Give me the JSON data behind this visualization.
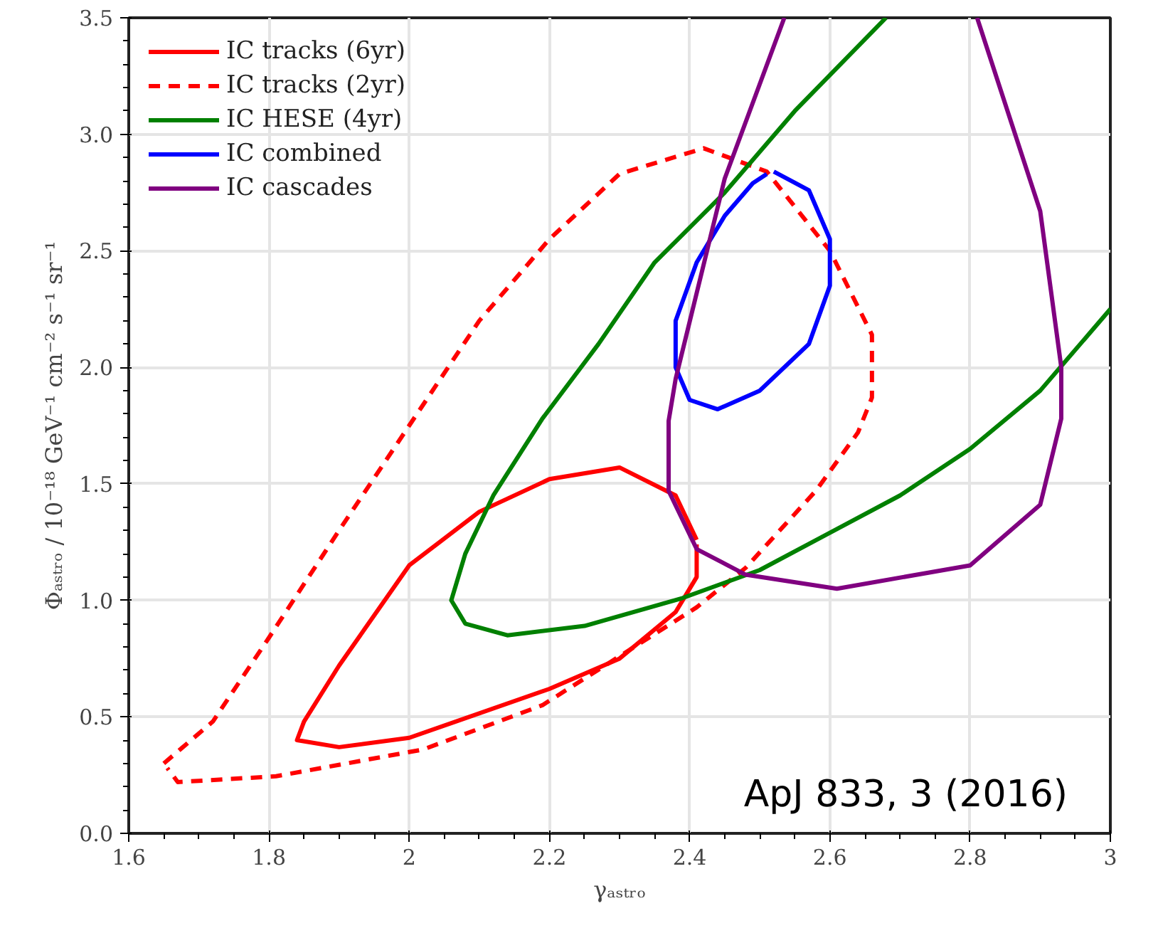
{
  "chart_data": {
    "type": "line",
    "xlabel": "γₐₛₜᵣₒ",
    "ylabel": "Φₐₛₜᵣₒ / 10⁻¹⁸ GeV⁻¹ cm⁻² s⁻¹ sr⁻¹",
    "xlim": [
      1.6,
      3.0
    ],
    "ylim": [
      0,
      3.5
    ],
    "xticks": [
      1.6,
      1.8,
      2.0,
      2.2,
      2.4,
      2.6,
      2.8,
      3.0
    ],
    "yticks": [
      {
        "value": 0,
        "label": "0.0"
      },
      0.5,
      {
        "value": 1,
        "label": "1.0"
      },
      1.5,
      {
        "value": 2,
        "label": "2.0"
      },
      2.5,
      {
        "value": 3,
        "label": "3.0"
      },
      3.5
    ],
    "grid": true,
    "legend": "top left",
    "annotations": [
      {
        "text": "ApJ 833, 3 (2016)"
      }
    ],
    "series": [
      {
        "name": "IC tracks (6yr)",
        "color": "#ff0000",
        "line_style": "solid",
        "x": [
          2.41,
          2.38,
          2.3,
          2.2,
          2.1,
          2.0,
          1.9,
          1.85,
          1.84,
          1.9,
          2.0,
          2.2,
          2.3,
          2.38,
          2.41,
          2.41
        ],
        "values": [
          1.26,
          1.45,
          1.57,
          1.52,
          1.38,
          1.15,
          0.72,
          0.48,
          0.4,
          0.37,
          0.41,
          0.62,
          0.75,
          0.95,
          1.1,
          1.24
        ]
      },
      {
        "name": "IC tracks (2yr)",
        "color": "#ff0000",
        "line_style": "dashed",
        "x": [
          1.65,
          1.72,
          1.8,
          1.9,
          2.0,
          2.1,
          2.2,
          2.3,
          2.42,
          2.51,
          2.6,
          2.66,
          2.66,
          2.64,
          2.58,
          2.48,
          2.41,
          2.19,
          2.02,
          1.81,
          1.67,
          1.655
        ],
        "values": [
          0.3,
          0.48,
          0.84,
          1.3,
          1.75,
          2.2,
          2.55,
          2.83,
          2.94,
          2.84,
          2.5,
          2.14,
          1.87,
          1.72,
          1.47,
          1.14,
          0.97,
          0.55,
          0.36,
          0.245,
          0.22,
          0.28
        ]
      },
      {
        "name": "IC HESE (4yr)",
        "color": "#008000",
        "line_style": "solid",
        "x": [
          2.68,
          2.55,
          2.45,
          2.35,
          2.27,
          2.19,
          2.12,
          2.08,
          2.06,
          2.08,
          2.14,
          2.25,
          2.39,
          2.5,
          2.6,
          2.7,
          2.8,
          2.9,
          3.0
        ],
        "values": [
          3.5,
          3.1,
          2.75,
          2.45,
          2.1,
          1.78,
          1.45,
          1.2,
          1.0,
          0.9,
          0.85,
          0.89,
          1.01,
          1.13,
          1.29,
          1.45,
          1.65,
          1.9,
          2.25
        ]
      },
      {
        "name": "IC combined",
        "color": "#0000ff",
        "line_style": "solid",
        "x": [
          2.52,
          2.57,
          2.6,
          2.6,
          2.57,
          2.5,
          2.44,
          2.4,
          2.38,
          2.38,
          2.41,
          2.45,
          2.49,
          2.51
        ],
        "values": [
          2.84,
          2.76,
          2.55,
          2.35,
          2.1,
          1.9,
          1.82,
          1.86,
          2.0,
          2.2,
          2.45,
          2.65,
          2.79,
          2.83
        ]
      },
      {
        "name": "IC cascades",
        "color": "#800080",
        "line_style": "solid",
        "x": [
          2.535,
          2.45,
          2.38,
          2.37,
          2.37,
          2.41,
          2.48,
          2.61,
          2.8,
          2.9,
          2.93,
          2.93,
          2.9,
          2.81
        ],
        "values": [
          3.5,
          2.81,
          1.95,
          1.77,
          1.47,
          1.22,
          1.11,
          1.05,
          1.15,
          1.41,
          1.78,
          2.0,
          2.67,
          3.5
        ]
      }
    ]
  }
}
